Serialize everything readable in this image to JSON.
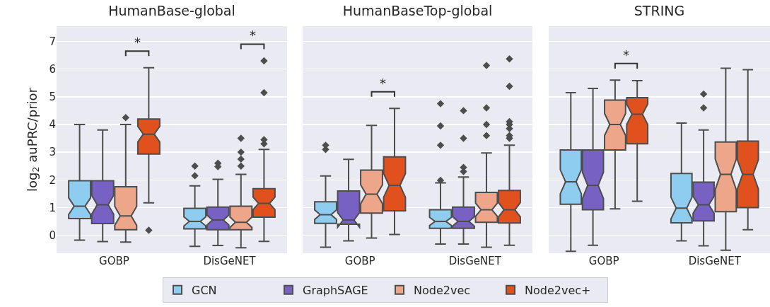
{
  "chart_data": [
    {
      "type": "box",
      "title": "HumanBase-global",
      "ylabel": "log$_{2}$ auPRC/prior",
      "categories": [
        "GOBP",
        "DisGeNET"
      ],
      "ylim": [
        -0.65,
        7.55
      ],
      "yticks": [
        0,
        1,
        2,
        3,
        4,
        5,
        6,
        7
      ],
      "grid": "y",
      "legend": false,
      "marker": "diamond",
      "annotations": [
        "*",
        "*"
      ],
      "series": [
        {
          "color": "#8ecdf0",
          "boxes": [
            {
              "low": -0.18,
              "q1": 0.6,
              "median": 1.05,
              "q3": 1.97,
              "high": 4.0
            },
            {
              "low": -0.4,
              "q1": 0.23,
              "median": 0.5,
              "q3": 0.97,
              "high": 1.78,
              "outliers": [
                2.15,
                2.5
              ]
            }
          ]
        },
        {
          "color": "#7762c4",
          "boxes": [
            {
              "low": -0.23,
              "q1": 0.42,
              "median": 1.1,
              "q3": 1.97,
              "high": 3.8
            },
            {
              "low": -0.37,
              "q1": 0.2,
              "median": 0.55,
              "q3": 1.02,
              "high": 2.02,
              "outliers": [
                2.48,
                2.6
              ]
            }
          ]
        },
        {
          "color": "#eea68a",
          "boxes": [
            {
              "low": -0.25,
              "q1": 0.2,
              "median": 0.7,
              "q3": 1.75,
              "high": 4.0,
              "outliers": [
                4.25
              ]
            },
            {
              "low": -0.45,
              "q1": 0.2,
              "median": 0.47,
              "q3": 1.05,
              "high": 2.2,
              "outliers": [
                2.5,
                2.75,
                3.0,
                3.5
              ]
            }
          ]
        },
        {
          "color": "#e0511e",
          "boxes": [
            {
              "low": 1.17,
              "q1": 2.93,
              "median": 3.65,
              "q3": 4.2,
              "high": 6.05,
              "outliers": [
                0.18
              ]
            },
            {
              "low": -0.22,
              "q1": 0.65,
              "median": 1.15,
              "q3": 1.68,
              "high": 3.1,
              "outliers": [
                3.3,
                3.45,
                5.15,
                6.3
              ]
            }
          ]
        }
      ]
    },
    {
      "type": "box",
      "title": "HumanBaseTop-global",
      "categories": [
        "GOBP",
        "DisGeNET"
      ],
      "ylim": [
        -0.65,
        7.55
      ],
      "yticks": [
        0,
        1,
        2,
        3,
        4,
        5,
        6,
        7
      ],
      "tick_labels": "x",
      "grid": "y",
      "legend": "bottom",
      "marker": "diamond",
      "annotations": [
        "*"
      ],
      "series": [
        {
          "name": "GCN",
          "color": "#8ecdf0",
          "boxes": [
            {
              "low": -0.43,
              "q1": 0.43,
              "median": 0.74,
              "q3": 1.21,
              "high": 2.14,
              "outliers": [
                3.1,
                3.25
              ]
            },
            {
              "low": -0.32,
              "q1": 0.25,
              "median": 0.5,
              "q3": 0.92,
              "high": 1.89,
              "outliers": [
                1.98,
                3.25,
                3.95,
                4.75
              ]
            }
          ]
        },
        {
          "name": "GraphSAGE",
          "color": "#7762c4",
          "boxes": [
            {
              "low": -0.2,
              "q1": 0.4,
              "median": 0.55,
              "q3": 1.6,
              "high": 2.74
            },
            {
              "low": -0.32,
              "q1": 0.25,
              "median": 0.5,
              "q3": 1.02,
              "high": 2.1,
              "outliers": [
                2.3,
                2.45,
                3.5,
                4.5
              ]
            }
          ]
        },
        {
          "name": "Node2vec",
          "color": "#eea68a",
          "boxes": [
            {
              "low": -0.1,
              "q1": 0.8,
              "median": 1.48,
              "q3": 2.35,
              "high": 3.97
            },
            {
              "low": -0.43,
              "q1": 0.47,
              "median": 0.92,
              "q3": 1.55,
              "high": 2.97,
              "outliers": [
                3.6,
                4.0,
                4.6,
                6.13
              ]
            }
          ]
        },
        {
          "name": "Node2vec+",
          "color": "#e0511e",
          "boxes": [
            {
              "low": 0.03,
              "q1": 0.88,
              "median": 1.8,
              "q3": 2.83,
              "high": 4.58
            },
            {
              "low": -0.36,
              "q1": 0.44,
              "median": 0.92,
              "q3": 1.62,
              "high": 3.25,
              "outliers": [
                3.5,
                3.6,
                3.85,
                4.0,
                4.1,
                5.38,
                6.37
              ]
            }
          ]
        }
      ]
    },
    {
      "type": "box",
      "title": "STRING",
      "categories": [
        "GOBP",
        "DisGeNET"
      ],
      "ylim": [
        -0.65,
        7.55
      ],
      "yticks": [
        0,
        1,
        2,
        3,
        4,
        5,
        6,
        7
      ],
      "tick_labels": "x",
      "grid": "y",
      "legend": false,
      "marker": "diamond",
      "annotations": [
        "*"
      ],
      "series": [
        {
          "color": "#8ecdf0",
          "boxes": [
            {
              "low": -0.58,
              "q1": 1.12,
              "median": 1.93,
              "q3": 3.08,
              "high": 5.15
            },
            {
              "low": -0.2,
              "q1": 0.45,
              "median": 0.98,
              "q3": 2.23,
              "high": 4.05
            }
          ]
        },
        {
          "color": "#7762c4",
          "boxes": [
            {
              "low": -0.36,
              "q1": 0.92,
              "median": 1.8,
              "q3": 3.08,
              "high": 5.3
            },
            {
              "low": -0.38,
              "q1": 0.52,
              "median": 1.1,
              "q3": 1.92,
              "high": 3.8,
              "outliers": [
                4.6,
                5.1
              ]
            }
          ]
        },
        {
          "color": "#eea68a",
          "boxes": [
            {
              "low": 0.95,
              "q1": 3.08,
              "median": 4.0,
              "q3": 4.88,
              "high": 5.6
            },
            {
              "low": -0.54,
              "q1": 0.85,
              "median": 2.2,
              "q3": 3.37,
              "high": 6.03
            }
          ]
        },
        {
          "color": "#e0511e",
          "boxes": [
            {
              "low": 1.23,
              "q1": 3.3,
              "median": 4.37,
              "q3": 4.97,
              "high": 5.58
            },
            {
              "low": 0.2,
              "q1": 1.0,
              "median": 2.2,
              "q3": 3.4,
              "high": 5.98
            }
          ]
        }
      ]
    }
  ]
}
